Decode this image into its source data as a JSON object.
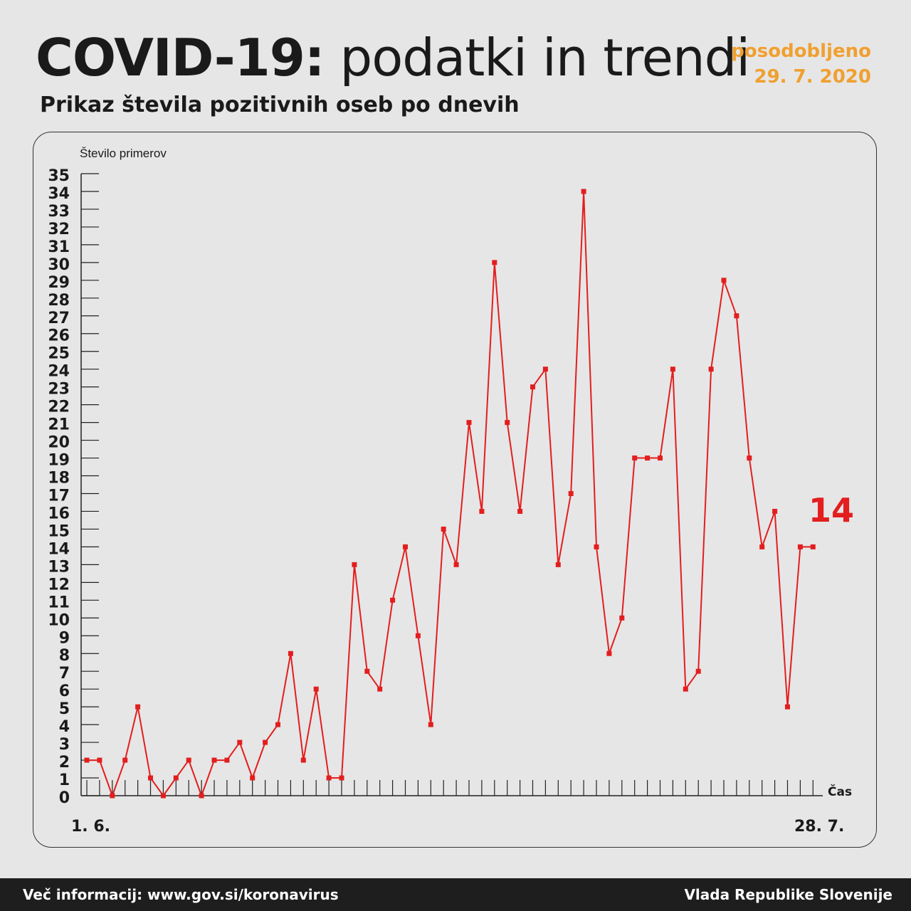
{
  "header": {
    "title_bold": "COVID-19:",
    "title_light": "podatki in trendi",
    "updated_label": "posodobljeno",
    "updated_date": "29. 7. 2020",
    "subtitle": "Prikaz števila pozitivnih oseb po dnevih"
  },
  "footer": {
    "left": "Več informacij: www.gov.si/koronavirus",
    "right": "Vlada Republike Slovenije"
  },
  "colors": {
    "line": "#e31e1e",
    "accent": "#f0a030"
  },
  "chart_data": {
    "type": "line",
    "title": "Prikaz števila pozitivnih oseb po dnevih",
    "ylabel": "Število primerov",
    "xlabel": "Čas",
    "x_start_label": "1. 6.",
    "x_end_label": "28. 7.",
    "ylim": [
      0,
      35
    ],
    "last_value_label": "14",
    "series": [
      {
        "values": [
          2,
          2,
          0,
          2,
          5,
          1,
          0,
          1,
          2,
          0,
          2,
          2,
          3,
          1,
          3,
          4,
          8,
          2,
          6,
          1,
          1,
          13,
          7,
          6,
          11,
          14,
          9,
          4,
          15,
          13,
          21,
          16,
          30,
          21,
          16,
          23,
          24,
          13,
          17,
          34,
          14,
          8,
          10,
          19,
          19,
          19,
          24,
          6,
          7,
          24,
          29,
          27,
          19,
          14,
          16,
          5,
          14,
          14
        ]
      }
    ]
  }
}
